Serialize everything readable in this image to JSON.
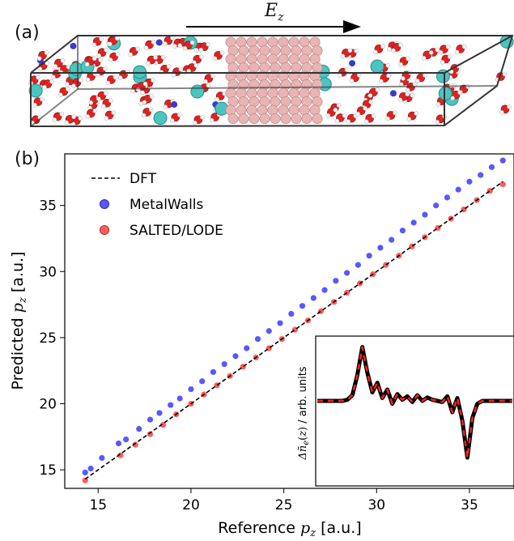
{
  "panels": {
    "a_label": "(a)",
    "b_label": "(b)"
  },
  "field_arrow": {
    "symbol": "E",
    "subscript": "z"
  },
  "chart_data": {
    "type": "scatter",
    "title": "",
    "xlabel": "Reference p_z  [a.u.]",
    "ylabel": "Predicted p_z  [a.u.]",
    "xlim": [
      13.2,
      37.4
    ],
    "ylim": [
      13.6,
      38.9
    ],
    "x_ticks": [
      15,
      20,
      25,
      30,
      35
    ],
    "y_ticks": [
      15,
      20,
      25,
      30,
      35
    ],
    "grid": false,
    "legend_position": "top-left",
    "series": [
      {
        "name": "DFT",
        "kind": "line",
        "style": "dashed",
        "color": "#000000",
        "x": [
          14.3,
          36.8
        ],
        "y": [
          14.3,
          36.8
        ]
      },
      {
        "name": "MetalWalls",
        "kind": "scatter",
        "color": "#3b3bff",
        "x": [
          14.3,
          14.6,
          15.2,
          16.1,
          16.5,
          17.2,
          17.8,
          18.3,
          18.9,
          19.4,
          20.0,
          20.6,
          21.2,
          21.8,
          22.4,
          23.0,
          23.6,
          24.2,
          24.8,
          25.4,
          26.0,
          26.6,
          27.2,
          27.8,
          28.4,
          29.0,
          29.6,
          30.2,
          30.8,
          31.4,
          32.0,
          32.6,
          33.2,
          33.8,
          34.4,
          35.0,
          35.6,
          36.2,
          36.8
        ],
        "y": [
          14.8,
          15.1,
          15.9,
          17.0,
          17.3,
          18.1,
          18.8,
          19.3,
          19.9,
          20.4,
          21.1,
          21.7,
          22.4,
          23.0,
          23.6,
          24.2,
          24.9,
          25.5,
          26.1,
          26.8,
          27.4,
          28.0,
          28.6,
          29.3,
          29.9,
          30.5,
          31.2,
          31.8,
          32.4,
          33.1,
          33.7,
          34.3,
          35.0,
          35.6,
          36.2,
          36.8,
          37.3,
          37.9,
          38.4
        ]
      },
      {
        "name": "SALTED/LODE",
        "kind": "scatter",
        "color": "#ff4040",
        "x": [
          14.3,
          16.2,
          17.0,
          17.8,
          18.5,
          19.2,
          20.0,
          20.7,
          21.4,
          22.1,
          22.8,
          23.5,
          24.2,
          24.9,
          25.6,
          26.3,
          27.0,
          27.7,
          28.4,
          29.1,
          29.8,
          30.5,
          31.2,
          31.9,
          32.6,
          33.3,
          34.0,
          34.7,
          35.4,
          36.1,
          36.8
        ],
        "y": [
          14.2,
          16.1,
          16.9,
          17.7,
          18.4,
          19.2,
          20.0,
          20.7,
          21.4,
          22.1,
          22.8,
          23.5,
          24.2,
          24.9,
          25.6,
          26.3,
          27.0,
          27.7,
          28.4,
          29.1,
          29.8,
          30.5,
          31.2,
          31.9,
          32.6,
          33.3,
          34.0,
          34.7,
          35.4,
          36.1,
          36.6
        ]
      }
    ],
    "inset": {
      "type": "line",
      "ylabel": "Δn̄_e(z) / arb. units",
      "series": [
        {
          "name": "",
          "color": "#000000",
          "values": [
            0,
            0,
            0,
            0,
            0,
            0,
            0.02,
            0.1,
            0.45,
            0.95,
            0.5,
            0.15,
            0.32,
            0.05,
            0.2,
            -0.05,
            0.12,
            0.02,
            0.08,
            -0.02,
            0.1,
            0.0,
            0.06,
            0.02,
            0.0,
            -0.02,
            0.08,
            -0.2,
            0.05,
            -0.35,
            -1.0,
            -0.3,
            -0.05,
            0,
            0,
            0,
            0,
            0,
            0,
            0
          ]
        },
        {
          "name": "",
          "color": "#ff2020",
          "style": "dashed",
          "values": [
            0,
            0,
            0,
            0,
            0,
            0,
            0.02,
            0.1,
            0.45,
            0.95,
            0.5,
            0.15,
            0.32,
            0.05,
            0.2,
            -0.05,
            0.12,
            0.02,
            0.08,
            -0.02,
            0.1,
            0.0,
            0.06,
            0.02,
            0.0,
            -0.02,
            0.08,
            -0.2,
            0.05,
            -0.35,
            -1.0,
            -0.3,
            -0.05,
            0,
            0,
            0,
            0,
            0,
            0,
            0
          ]
        }
      ]
    }
  }
}
